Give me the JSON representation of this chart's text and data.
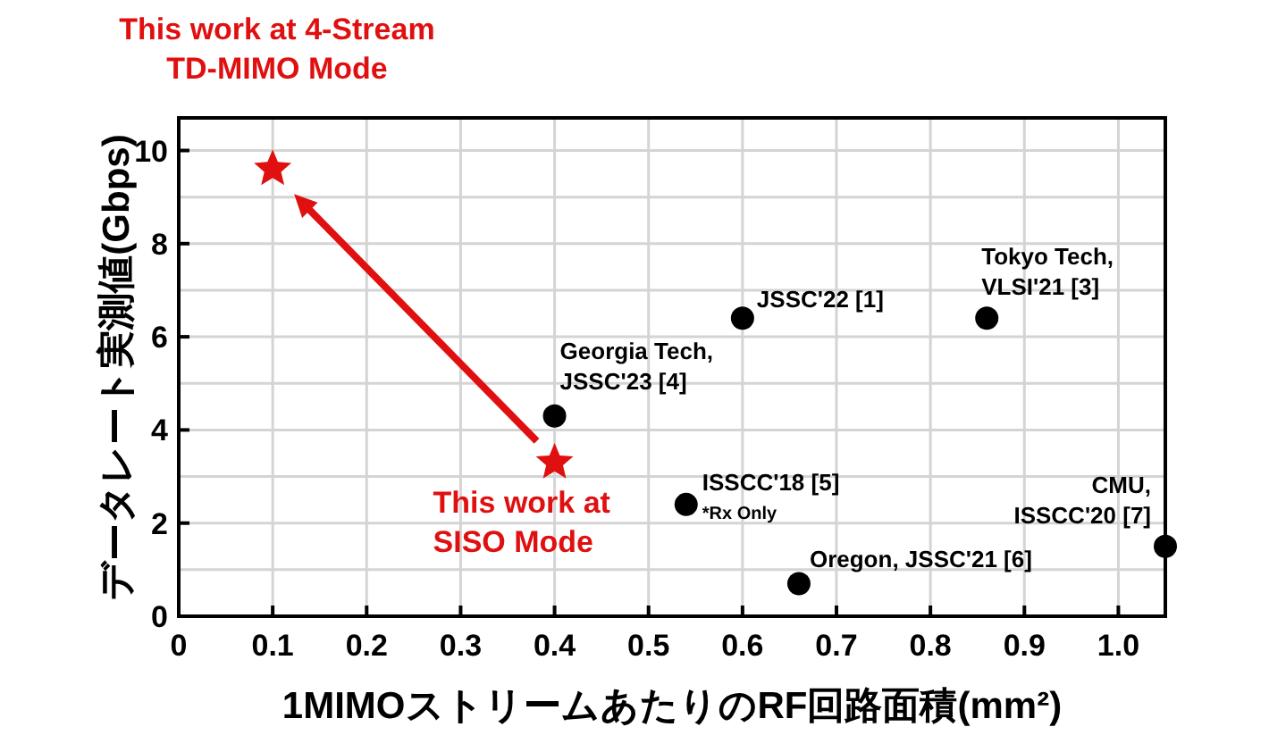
{
  "chart_data": {
    "type": "scatter",
    "xlabel": "1MIMOストリームあたりのRF回路面積(mm²)",
    "ylabel": "データレート実測値(Gbps)",
    "xlim": [
      0,
      1.05
    ],
    "ylim": [
      0,
      10.7
    ],
    "xticks": [
      0,
      0.1,
      0.2,
      0.3,
      0.4,
      0.5,
      0.6,
      0.7,
      0.8,
      0.9,
      {
        "value": 1.0,
        "label": "1.0"
      }
    ],
    "yticks": [
      0,
      {
        "value": 1,
        "label": null
      },
      2,
      {
        "value": 3,
        "label": null
      },
      4,
      {
        "value": 5,
        "label": null
      },
      6,
      {
        "value": 7,
        "label": null
      },
      8,
      {
        "value": 9,
        "label": null
      },
      10
    ],
    "grid": true,
    "series": [
      {
        "color": "#e01010",
        "marker": "star",
        "x": [
          0.1,
          0.4
        ],
        "values": [
          9.6,
          3.3
        ]
      },
      {
        "color": "#000000",
        "marker": "circle",
        "x": [
          0.4,
          0.54,
          0.6,
          0.86,
          0.66,
          1.05
        ],
        "values": [
          4.3,
          2.4,
          6.4,
          6.4,
          0.7,
          1.5
        ]
      }
    ],
    "annotations": [
      "This work at 4-Stream\nTD-MIMO Mode",
      {
        "text": "This work at\nSISO Mode",
        "x": 0.4,
        "y": 3.3
      },
      {
        "text": "Georgia Tech,\nJSSC'23 [4]",
        "x": 0.4,
        "y": 4.3
      },
      {
        "text": "ISSCC'18 [5]",
        "x": 0.54,
        "y": 2.4
      },
      {
        "text": "*Rx Only",
        "x": 0.54,
        "y": 2.4
      },
      {
        "text": "JSSC'22 [1]",
        "x": 0.6,
        "y": 6.4
      },
      {
        "text": "Tokyo Tech,\nVLSI'21 [3]",
        "x": 0.86,
        "y": 6.4
      },
      {
        "text": "Oregon, JSSC'21 [6]",
        "x": 0.66,
        "y": 0.7
      },
      {
        "text": "CMU,\nISSCC'20 [7]",
        "x": 1.05,
        "y": 1.5
      }
    ]
  }
}
